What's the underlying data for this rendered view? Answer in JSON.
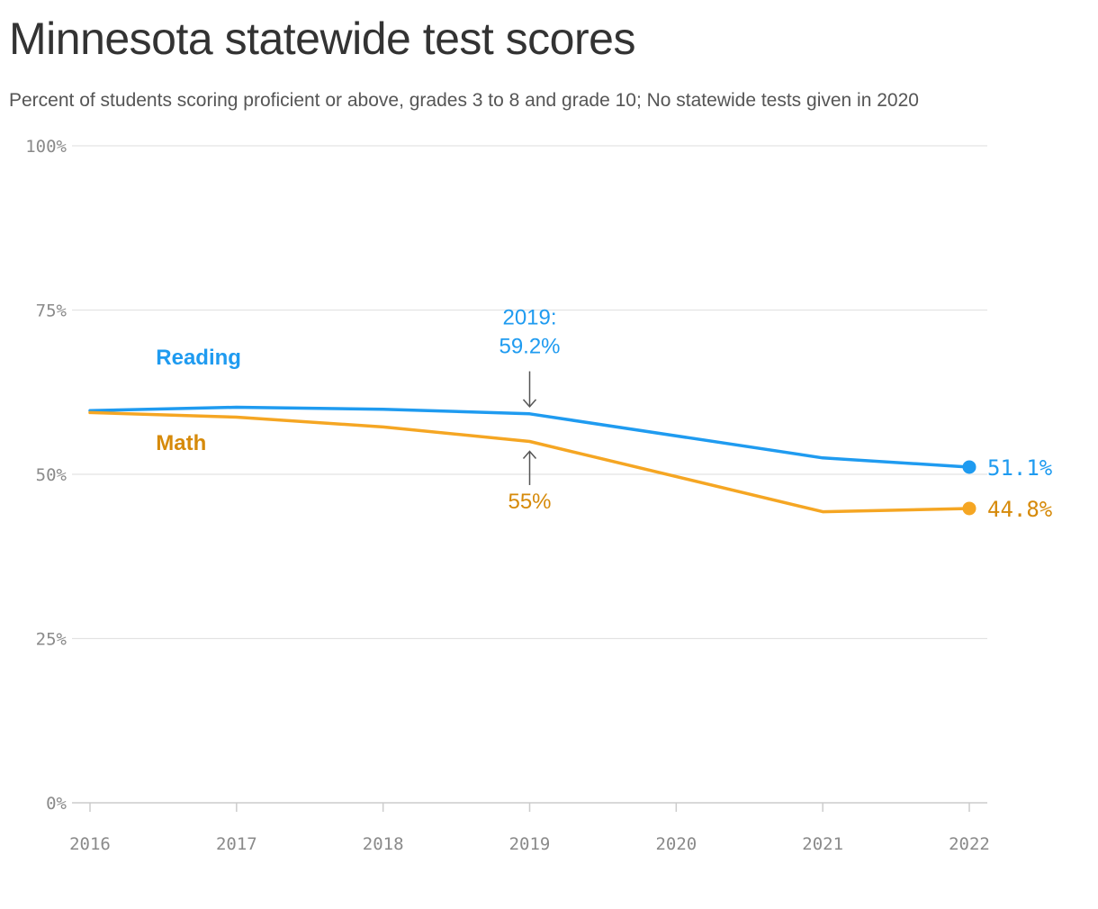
{
  "header": {
    "title": "Minnesota statewide test scores",
    "subtitle": "Percent of students scoring proficient or above, grades 3 to 8 and grade 10; No statewide tests given in 2020"
  },
  "chart_data": {
    "type": "line",
    "title": "Minnesota statewide test scores",
    "subtitle": "Percent of students scoring proficient or above, grades 3 to 8 and grade 10; No statewide tests given in 2020",
    "xlabel": "",
    "ylabel": "",
    "x": [
      2016,
      2017,
      2018,
      2019,
      2020,
      2021,
      2022
    ],
    "x_tick_labels": [
      "2016",
      "2017",
      "2018",
      "2019",
      "2020",
      "2021",
      "2022"
    ],
    "ylim": [
      0,
      100
    ],
    "y_ticks": [
      0,
      25,
      50,
      75,
      100
    ],
    "y_tick_labels": [
      "0%",
      "25%",
      "50%",
      "75%",
      "100%"
    ],
    "grid": true,
    "legend": "inline labels",
    "series": [
      {
        "name": "Reading",
        "color": "#1f9bf0",
        "label_color": "#1f9bf0",
        "x": [
          2016,
          2017,
          2018,
          2019,
          2021,
          2022
        ],
        "values": [
          59.7,
          60.2,
          59.9,
          59.2,
          52.5,
          51.1
        ],
        "end_label": "51.1%"
      },
      {
        "name": "Math",
        "color": "#f5a623",
        "label_color": "#d68a0a",
        "x": [
          2016,
          2017,
          2018,
          2019,
          2021,
          2022
        ],
        "values": [
          59.4,
          58.7,
          57.2,
          55.0,
          44.3,
          44.8
        ],
        "end_label": "44.8%"
      }
    ],
    "annotations": [
      {
        "series": "Reading",
        "x": 2019,
        "lines": [
          "2019:",
          "59.2%"
        ],
        "color": "#1f9bf0",
        "arrow": "down",
        "label_value": 72.8
      },
      {
        "series": "Math",
        "x": 2019,
        "lines": [
          "55%"
        ],
        "color": "#d68a0a",
        "arrow": "up",
        "label_value": 44.8
      }
    ],
    "series_label_positions": [
      {
        "series": "Reading",
        "x": 2016.45,
        "y": 66.7
      },
      {
        "series": "Math",
        "x": 2016.45,
        "y": 53.7
      }
    ],
    "arrow_color": "#555555",
    "grid_color": "#e3e3e3",
    "axis_color": "#cccccc"
  }
}
